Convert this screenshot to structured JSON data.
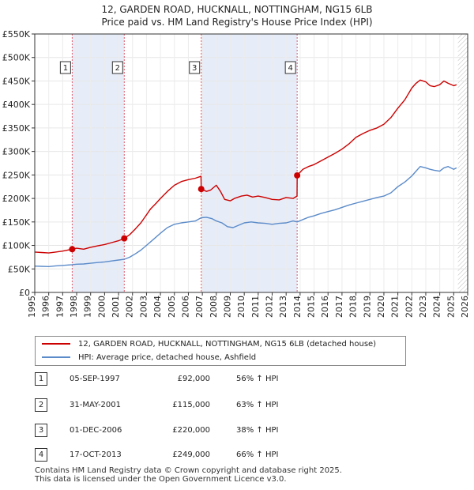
{
  "title_line1": "12, GARDEN ROAD, HUCKNALL, NOTTINGHAM, NG15 6LB",
  "title_line2": "Price paid vs. HM Land Registry's House Price Index (HPI)",
  "colors": {
    "property": "#cc0000",
    "hpi": "#5b8bc9",
    "shade": "#dde6f5",
    "vline": "#e05a6a",
    "future_hatch": "#bbbbbb"
  },
  "chart_data": {
    "type": "line",
    "xlim": [
      1995,
      2026
    ],
    "ylim": [
      0,
      550000
    ],
    "x_ticks": [
      1995,
      1996,
      1997,
      1998,
      1999,
      2000,
      2001,
      2002,
      2003,
      2004,
      2005,
      2006,
      2007,
      2008,
      2009,
      2010,
      2011,
      2012,
      2013,
      2014,
      2015,
      2016,
      2017,
      2018,
      2019,
      2020,
      2021,
      2022,
      2023,
      2024,
      2025,
      2026
    ],
    "x_tick_labels": [
      "1995",
      "1996",
      "1997",
      "1998",
      "1999",
      "2000",
      "2001",
      "2002",
      "2003",
      "2004",
      "2005",
      "2006",
      "2007",
      "2008",
      "2009",
      "2010",
      "2011",
      "2012",
      "2013",
      "2014",
      "2015",
      "2016",
      "2017",
      "2018",
      "2019",
      "2020",
      "2021",
      "2022",
      "2023",
      "2024",
      "2025",
      "2026"
    ],
    "y_ticks": [
      0,
      50000,
      100000,
      150000,
      200000,
      250000,
      300000,
      350000,
      400000,
      450000,
      500000,
      550000
    ],
    "y_tick_labels": [
      "£0",
      "£50K",
      "£100K",
      "£150K",
      "£200K",
      "£250K",
      "£300K",
      "£350K",
      "£400K",
      "£450K",
      "£500K",
      "£550K"
    ],
    "future_from": 2025.3,
    "shaded_ranges": [
      [
        1997.68,
        2001.41
      ],
      [
        2006.92,
        2013.79
      ]
    ],
    "series": [
      {
        "name": "12, GARDEN ROAD, HUCKNALL, NOTTINGHAM, NG15 6LB (detached house)",
        "x": [
          1995,
          1995.5,
          1996,
          1996.5,
          1997,
          1997.68,
          1998,
          1998.5,
          1999,
          1999.5,
          2000,
          2000.5,
          2001,
          2001.41,
          2001.8,
          2002.2,
          2002.6,
          2003,
          2003.3,
          2003.7,
          2004,
          2004.5,
          2005,
          2005.5,
          2006,
          2006.5,
          2006.9,
          2006.92,
          2007.3,
          2007.6,
          2008,
          2008.3,
          2008.6,
          2009,
          2009.3,
          2009.8,
          2010.2,
          2010.6,
          2011,
          2011.5,
          2012,
          2012.5,
          2013,
          2013.5,
          2013.78,
          2013.79,
          2014.2,
          2014.6,
          2015,
          2015.5,
          2016,
          2016.5,
          2017,
          2017.5,
          2018,
          2018.5,
          2019,
          2019.5,
          2020,
          2020.5,
          2021,
          2021.5,
          2022,
          2022.3,
          2022.6,
          2023,
          2023.3,
          2023.6,
          2024,
          2024.3,
          2024.6,
          2025,
          2025.2
        ],
        "values": [
          86000,
          85000,
          84000,
          86000,
          88000,
          92000,
          94000,
          92000,
          96000,
          99000,
          102000,
          106000,
          110000,
          115000,
          123000,
          135000,
          148000,
          165000,
          178000,
          190000,
          200000,
          215000,
          228000,
          236000,
          240000,
          243000,
          247000,
          220000,
          215000,
          218000,
          228000,
          215000,
          198000,
          195000,
          200000,
          205000,
          207000,
          203000,
          205000,
          202000,
          198000,
          197000,
          202000,
          200000,
          205000,
          249000,
          262000,
          268000,
          272000,
          280000,
          288000,
          296000,
          305000,
          316000,
          330000,
          338000,
          345000,
          350000,
          358000,
          372000,
          392000,
          410000,
          435000,
          445000,
          452000,
          448000,
          440000,
          438000,
          442000,
          450000,
          445000,
          440000,
          442000
        ]
      },
      {
        "name": "HPI: Average price, detached house, Ashfield",
        "x": [
          1995,
          1995.5,
          1996,
          1996.5,
          1997,
          1997.68,
          1998,
          1998.5,
          1999,
          1999.5,
          2000,
          2000.5,
          2001,
          2001.41,
          2001.8,
          2002.2,
          2002.6,
          2003,
          2003.5,
          2004,
          2004.5,
          2005,
          2005.5,
          2006,
          2006.5,
          2006.92,
          2007.3,
          2007.7,
          2008,
          2008.4,
          2008.8,
          2009.2,
          2009.6,
          2010,
          2010.5,
          2011,
          2011.5,
          2012,
          2012.5,
          2013,
          2013.5,
          2013.79,
          2014.2,
          2014.6,
          2015,
          2015.5,
          2016,
          2016.5,
          2017,
          2017.5,
          2018,
          2018.5,
          2019,
          2019.5,
          2020,
          2020.5,
          2021,
          2021.5,
          2022,
          2022.3,
          2022.6,
          2023,
          2023.3,
          2023.6,
          2024,
          2024.3,
          2024.6,
          2025,
          2025.2
        ],
        "values": [
          56000,
          55500,
          55000,
          56500,
          57500,
          59000,
          60000,
          60500,
          62000,
          63500,
          65000,
          67000,
          69000,
          70500,
          75000,
          82000,
          90000,
          100000,
          113000,
          126000,
          138000,
          145000,
          148000,
          150000,
          152000,
          159000,
          160000,
          157000,
          152000,
          148000,
          140000,
          138000,
          143000,
          148000,
          150000,
          148000,
          147000,
          145000,
          147000,
          148000,
          152000,
          150000,
          155000,
          160000,
          163000,
          168000,
          172000,
          176000,
          181000,
          186000,
          190000,
          194000,
          198000,
          202000,
          205000,
          212000,
          225000,
          235000,
          248000,
          258000,
          268000,
          265000,
          262000,
          260000,
          258000,
          265000,
          268000,
          262000,
          265000
        ]
      }
    ],
    "markers": [
      {
        "label": "1",
        "x": 1997.68,
        "y": 92000
      },
      {
        "label": "2",
        "x": 2001.41,
        "y": 115000
      },
      {
        "label": "3",
        "x": 2006.92,
        "y": 220000
      },
      {
        "label": "4",
        "x": 2013.79,
        "y": 249000
      }
    ]
  },
  "legend": {
    "property_label": "12, GARDEN ROAD, HUCKNALL, NOTTINGHAM, NG15 6LB (detached house)",
    "hpi_label": "HPI: Average price, detached house, Ashfield"
  },
  "sales": [
    {
      "num": "1",
      "date": "05-SEP-1997",
      "price": "£92,000",
      "hpi": "56% ↑ HPI"
    },
    {
      "num": "2",
      "date": "31-MAY-2001",
      "price": "£115,000",
      "hpi": "63% ↑ HPI"
    },
    {
      "num": "3",
      "date": "01-DEC-2006",
      "price": "£220,000",
      "hpi": "38% ↑ HPI"
    },
    {
      "num": "4",
      "date": "17-OCT-2013",
      "price": "£249,000",
      "hpi": "66% ↑ HPI"
    }
  ],
  "footer_line1": "Contains HM Land Registry data © Crown copyright and database right 2025.",
  "footer_line2": "This data is licensed under the Open Government Licence v3.0."
}
